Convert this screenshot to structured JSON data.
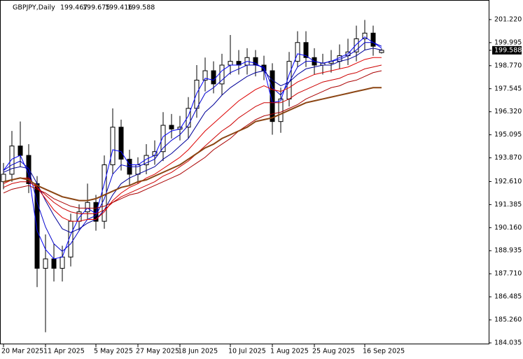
{
  "chart_data": {
    "type": "candlestick",
    "title": "GBPJPY,Daily",
    "header_values": [
      199.467,
      199.675,
      199.416,
      199.588
    ],
    "last_price": 199.588,
    "categories": [
      "20 Mar 2025",
      null,
      null,
      null,
      null,
      "11 Apr 2025",
      null,
      null,
      null,
      null,
      null,
      "5 May 2025",
      null,
      null,
      null,
      null,
      "27 May 2025",
      null,
      null,
      null,
      null,
      "18 Jun 2025",
      null,
      null,
      null,
      null,
      null,
      "10 Jul 2025",
      null,
      null,
      null,
      null,
      "1 Aug 2025",
      null,
      null,
      null,
      null,
      "25 Aug 2025",
      null,
      null,
      null,
      null,
      null,
      "16 Sep 2025",
      null,
      null
    ],
    "open": [
      192.6,
      193.0,
      194.5,
      194.0,
      192.5,
      188.0,
      188.5,
      188.0,
      188.6,
      190.5,
      191.0,
      191.5,
      190.5,
      193.5,
      195.5,
      193.8,
      193.0,
      193.5,
      194.0,
      194.2,
      195.6,
      195.4,
      195.5,
      196.5,
      198.0,
      198.5,
      197.8,
      198.8,
      199.0,
      198.8,
      199.2,
      198.8,
      198.5,
      195.8,
      197.0,
      199.0,
      200.0,
      199.2,
      198.8,
      198.9,
      199.0,
      199.3,
      199.5,
      200.2,
      200.5,
      199.467
    ],
    "high": [
      193.6,
      195.3,
      195.8,
      194.6,
      192.9,
      189.8,
      189.3,
      189.2,
      190.9,
      191.4,
      192.5,
      191.9,
      194.0,
      196.5,
      195.9,
      194.3,
      193.9,
      194.6,
      194.8,
      196.3,
      196.2,
      196.1,
      197.1,
      198.8,
      199.2,
      199.0,
      199.4,
      200.4,
      199.6,
      199.7,
      199.6,
      199.3,
      198.9,
      197.6,
      199.5,
      200.6,
      200.6,
      199.7,
      199.4,
      199.6,
      199.9,
      200.2,
      200.9,
      201.2,
      200.9,
      199.675
    ],
    "low": [
      192.2,
      192.6,
      193.4,
      192.0,
      187.0,
      184.6,
      187.3,
      187.3,
      188.1,
      190.0,
      190.6,
      190.0,
      190.1,
      193.0,
      193.2,
      192.4,
      192.5,
      193.0,
      193.5,
      193.7,
      194.9,
      194.8,
      194.9,
      196.0,
      197.4,
      197.3,
      197.2,
      198.3,
      198.3,
      198.3,
      198.2,
      198.0,
      195.1,
      195.2,
      196.6,
      198.7,
      198.7,
      198.3,
      198.3,
      198.4,
      198.6,
      198.8,
      199.0,
      199.6,
      199.3,
      199.416
    ],
    "close": [
      193.0,
      194.5,
      194.0,
      192.5,
      188.0,
      188.5,
      188.0,
      188.6,
      190.5,
      191.0,
      191.5,
      190.5,
      193.5,
      195.5,
      193.8,
      193.0,
      193.5,
      194.0,
      194.2,
      195.6,
      195.4,
      195.5,
      196.5,
      198.0,
      198.5,
      197.8,
      198.8,
      199.0,
      198.8,
      199.2,
      198.8,
      198.5,
      195.8,
      197.0,
      199.0,
      200.0,
      199.2,
      198.8,
      198.9,
      199.0,
      199.3,
      199.5,
      200.2,
      200.5,
      199.8,
      199.588
    ],
    "series": [
      {
        "color": "#0000ff",
        "values": [
          193.2,
          193.8,
          194.0,
          193.0,
          190.0,
          189.0,
          188.5,
          188.6,
          189.8,
          190.7,
          191.2,
          190.9,
          192.5,
          194.3,
          194.2,
          193.5,
          193.5,
          193.8,
          194.0,
          195.0,
          195.3,
          195.4,
          196.1,
          197.3,
          198.1,
          198.0,
          198.5,
          198.8,
          198.8,
          199.0,
          198.9,
          198.6,
          196.8,
          196.9,
          198.3,
          199.4,
          199.3,
          199.0,
          198.9,
          199.0,
          199.2,
          199.4,
          199.9,
          200.3,
          200.0,
          199.7
        ]
      },
      {
        "color": "#0000cc",
        "values": [
          193.2,
          193.5,
          193.7,
          193.3,
          191.5,
          190.2,
          189.3,
          188.9,
          189.3,
          190.0,
          190.6,
          190.8,
          191.7,
          193.0,
          193.5,
          193.4,
          193.4,
          193.6,
          193.8,
          194.4,
          194.8,
          195.1,
          195.6,
          196.5,
          197.3,
          197.6,
          198.0,
          198.4,
          198.6,
          198.8,
          198.8,
          198.7,
          197.6,
          197.2,
          197.9,
          198.7,
          199.0,
          199.0,
          198.9,
          199.0,
          199.1,
          199.3,
          199.6,
          200.0,
          200.0,
          199.8
        ]
      },
      {
        "color": "#000099",
        "values": [
          193.1,
          193.3,
          193.4,
          193.3,
          192.5,
          191.6,
          190.8,
          190.1,
          189.9,
          190.1,
          190.4,
          190.6,
          191.1,
          191.9,
          192.5,
          192.8,
          193.0,
          193.2,
          193.4,
          193.8,
          194.1,
          194.5,
          194.9,
          195.6,
          196.3,
          196.7,
          197.2,
          197.6,
          197.9,
          198.2,
          198.4,
          198.5,
          198.0,
          197.7,
          197.9,
          198.3,
          198.6,
          198.7,
          198.8,
          198.8,
          199.0,
          199.1,
          199.3,
          199.6,
          199.7,
          199.6
        ]
      },
      {
        "color": "#dd0000",
        "values": [
          192.5,
          192.7,
          192.8,
          192.8,
          192.3,
          191.7,
          191.1,
          190.7,
          190.5,
          190.5,
          190.6,
          190.6,
          191.0,
          191.6,
          192.0,
          192.3,
          192.5,
          192.8,
          193.0,
          193.3,
          193.6,
          193.9,
          194.3,
          194.8,
          195.3,
          195.7,
          196.1,
          196.5,
          196.9,
          197.2,
          197.5,
          197.7,
          197.5,
          197.4,
          197.6,
          197.9,
          198.1,
          198.3,
          198.4,
          198.5,
          198.6,
          198.7,
          198.9,
          199.1,
          199.2,
          199.2
        ]
      },
      {
        "color": "#cc0000",
        "values": [
          192.3,
          192.5,
          192.6,
          192.6,
          192.3,
          191.9,
          191.5,
          191.2,
          191.0,
          190.9,
          190.9,
          190.9,
          191.1,
          191.5,
          191.8,
          192.0,
          192.2,
          192.4,
          192.6,
          192.9,
          193.1,
          193.4,
          193.7,
          194.1,
          194.5,
          194.9,
          195.3,
          195.6,
          196.0,
          196.3,
          196.6,
          196.8,
          196.8,
          196.8,
          197.0,
          197.3,
          197.5,
          197.7,
          197.9,
          198.0,
          198.1,
          198.3,
          198.4,
          198.6,
          198.7,
          198.8
        ]
      },
      {
        "color": "#aa0000",
        "values": [
          192.0,
          192.2,
          192.3,
          192.4,
          192.2,
          192.0,
          191.7,
          191.5,
          191.3,
          191.2,
          191.2,
          191.2,
          191.3,
          191.5,
          191.7,
          191.9,
          192.0,
          192.2,
          192.4,
          192.6,
          192.8,
          193.0,
          193.3,
          193.6,
          193.9,
          194.3,
          194.6,
          194.9,
          195.3,
          195.6,
          195.9,
          196.1,
          196.2,
          196.3,
          196.5,
          196.7,
          197.0,
          197.2,
          197.4,
          197.6,
          197.7,
          197.9,
          198.0,
          198.2,
          198.4,
          198.5
        ]
      },
      {
        "color": "#8b4513",
        "values": [
          192.6,
          192.7,
          192.8,
          192.7,
          192.4,
          192.2,
          192.0,
          191.8,
          191.7,
          191.6,
          191.6,
          191.7,
          191.9,
          192.1,
          192.3,
          192.4,
          192.6,
          192.7,
          192.9,
          193.1,
          193.3,
          193.5,
          193.8,
          194.1,
          194.4,
          194.6,
          194.9,
          195.1,
          195.3,
          195.5,
          195.8,
          195.9,
          196.0,
          196.2,
          196.4,
          196.6,
          196.8,
          196.9,
          197.0,
          197.1,
          197.2,
          197.3,
          197.4,
          197.5,
          197.6,
          197.6
        ]
      }
    ],
    "ylim": [
      183.96,
      202.26
    ],
    "yticks": [
      {
        "value": 201.22,
        "label": "201.220"
      },
      {
        "value": 199.995,
        "label": "199.995"
      },
      {
        "value": 198.77,
        "label": "198.770"
      },
      {
        "value": 197.545,
        "label": "197.545"
      },
      {
        "value": 196.32,
        "label": "196.320"
      },
      {
        "value": 195.095,
        "label": "195.095"
      },
      {
        "value": 193.87,
        "label": "193.870"
      },
      {
        "value": 192.61,
        "label": "192.610"
      },
      {
        "value": 191.385,
        "label": "191.385"
      },
      {
        "value": 190.16,
        "label": "190.160"
      },
      {
        "value": 188.935,
        "label": "188.935"
      },
      {
        "value": 187.71,
        "label": "187.710"
      },
      {
        "value": 186.485,
        "label": "186.485"
      },
      {
        "value": 185.26,
        "label": "185.260"
      },
      {
        "value": 184.035,
        "label": "184.035"
      }
    ]
  }
}
